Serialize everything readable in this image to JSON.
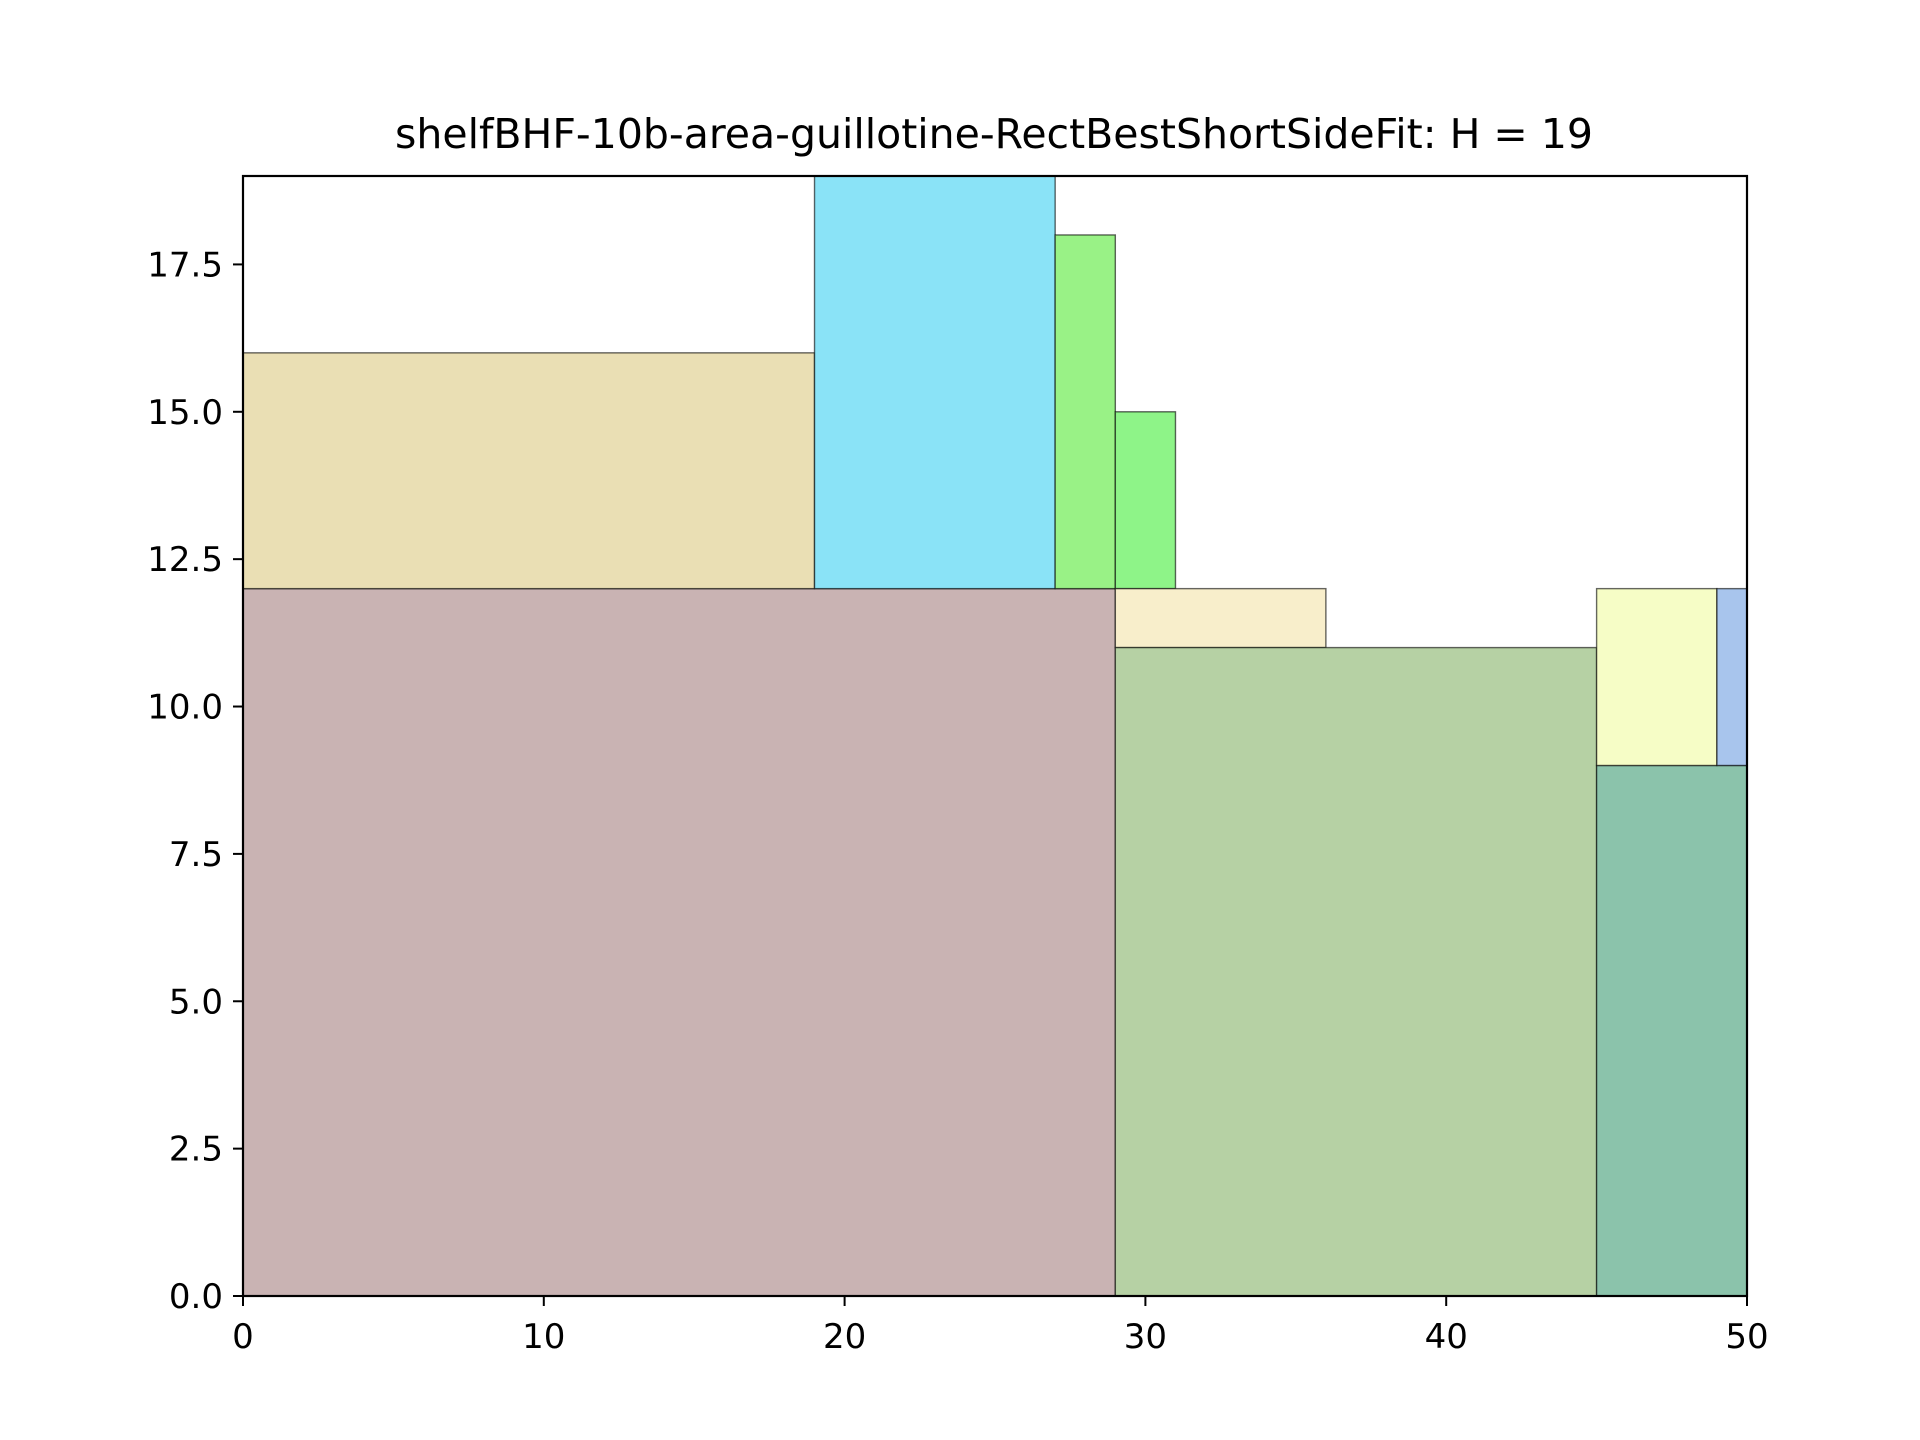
{
  "chart_data": {
    "type": "rectangle-packing",
    "title": "shelfBHF-10b-area-guillotine-RectBestShortSideFit: H = 19",
    "xlabel": "",
    "ylabel": "",
    "xlim": [
      0,
      50
    ],
    "ylim": [
      0,
      19
    ],
    "xticks": [
      "0",
      "10",
      "20",
      "30",
      "40",
      "50"
    ],
    "yticks": [
      "0.0",
      "2.5",
      "5.0",
      "7.5",
      "10.0",
      "12.5",
      "15.0",
      "17.5"
    ],
    "grid": false,
    "legend": "none",
    "rectangles": [
      {
        "x": 0,
        "y": 0,
        "width": 29,
        "height": 12,
        "color": "#c9b3b3"
      },
      {
        "x": 0,
        "y": 12,
        "width": 19,
        "height": 4,
        "color": "#eadfb4"
      },
      {
        "x": 19,
        "y": 12,
        "width": 8,
        "height": 7,
        "color": "#8ae3f7"
      },
      {
        "x": 27,
        "y": 12,
        "width": 2,
        "height": 6,
        "color": "#99f286"
      },
      {
        "x": 29,
        "y": 12,
        "width": 2,
        "height": 3,
        "color": "#8ef488"
      },
      {
        "x": 29,
        "y": 11,
        "width": 7,
        "height": 1,
        "color": "#f8eecb"
      },
      {
        "x": 29,
        "y": 0,
        "width": 16,
        "height": 11,
        "color": "#b6d1a4"
      },
      {
        "x": 45,
        "y": 0,
        "width": 5,
        "height": 9,
        "color": "#8bc3ab"
      },
      {
        "x": 45,
        "y": 9,
        "width": 4,
        "height": 3,
        "color": "#f6fdc6"
      },
      {
        "x": 49,
        "y": 9,
        "width": 1,
        "height": 3,
        "color": "#a8c5ed"
      }
    ]
  }
}
